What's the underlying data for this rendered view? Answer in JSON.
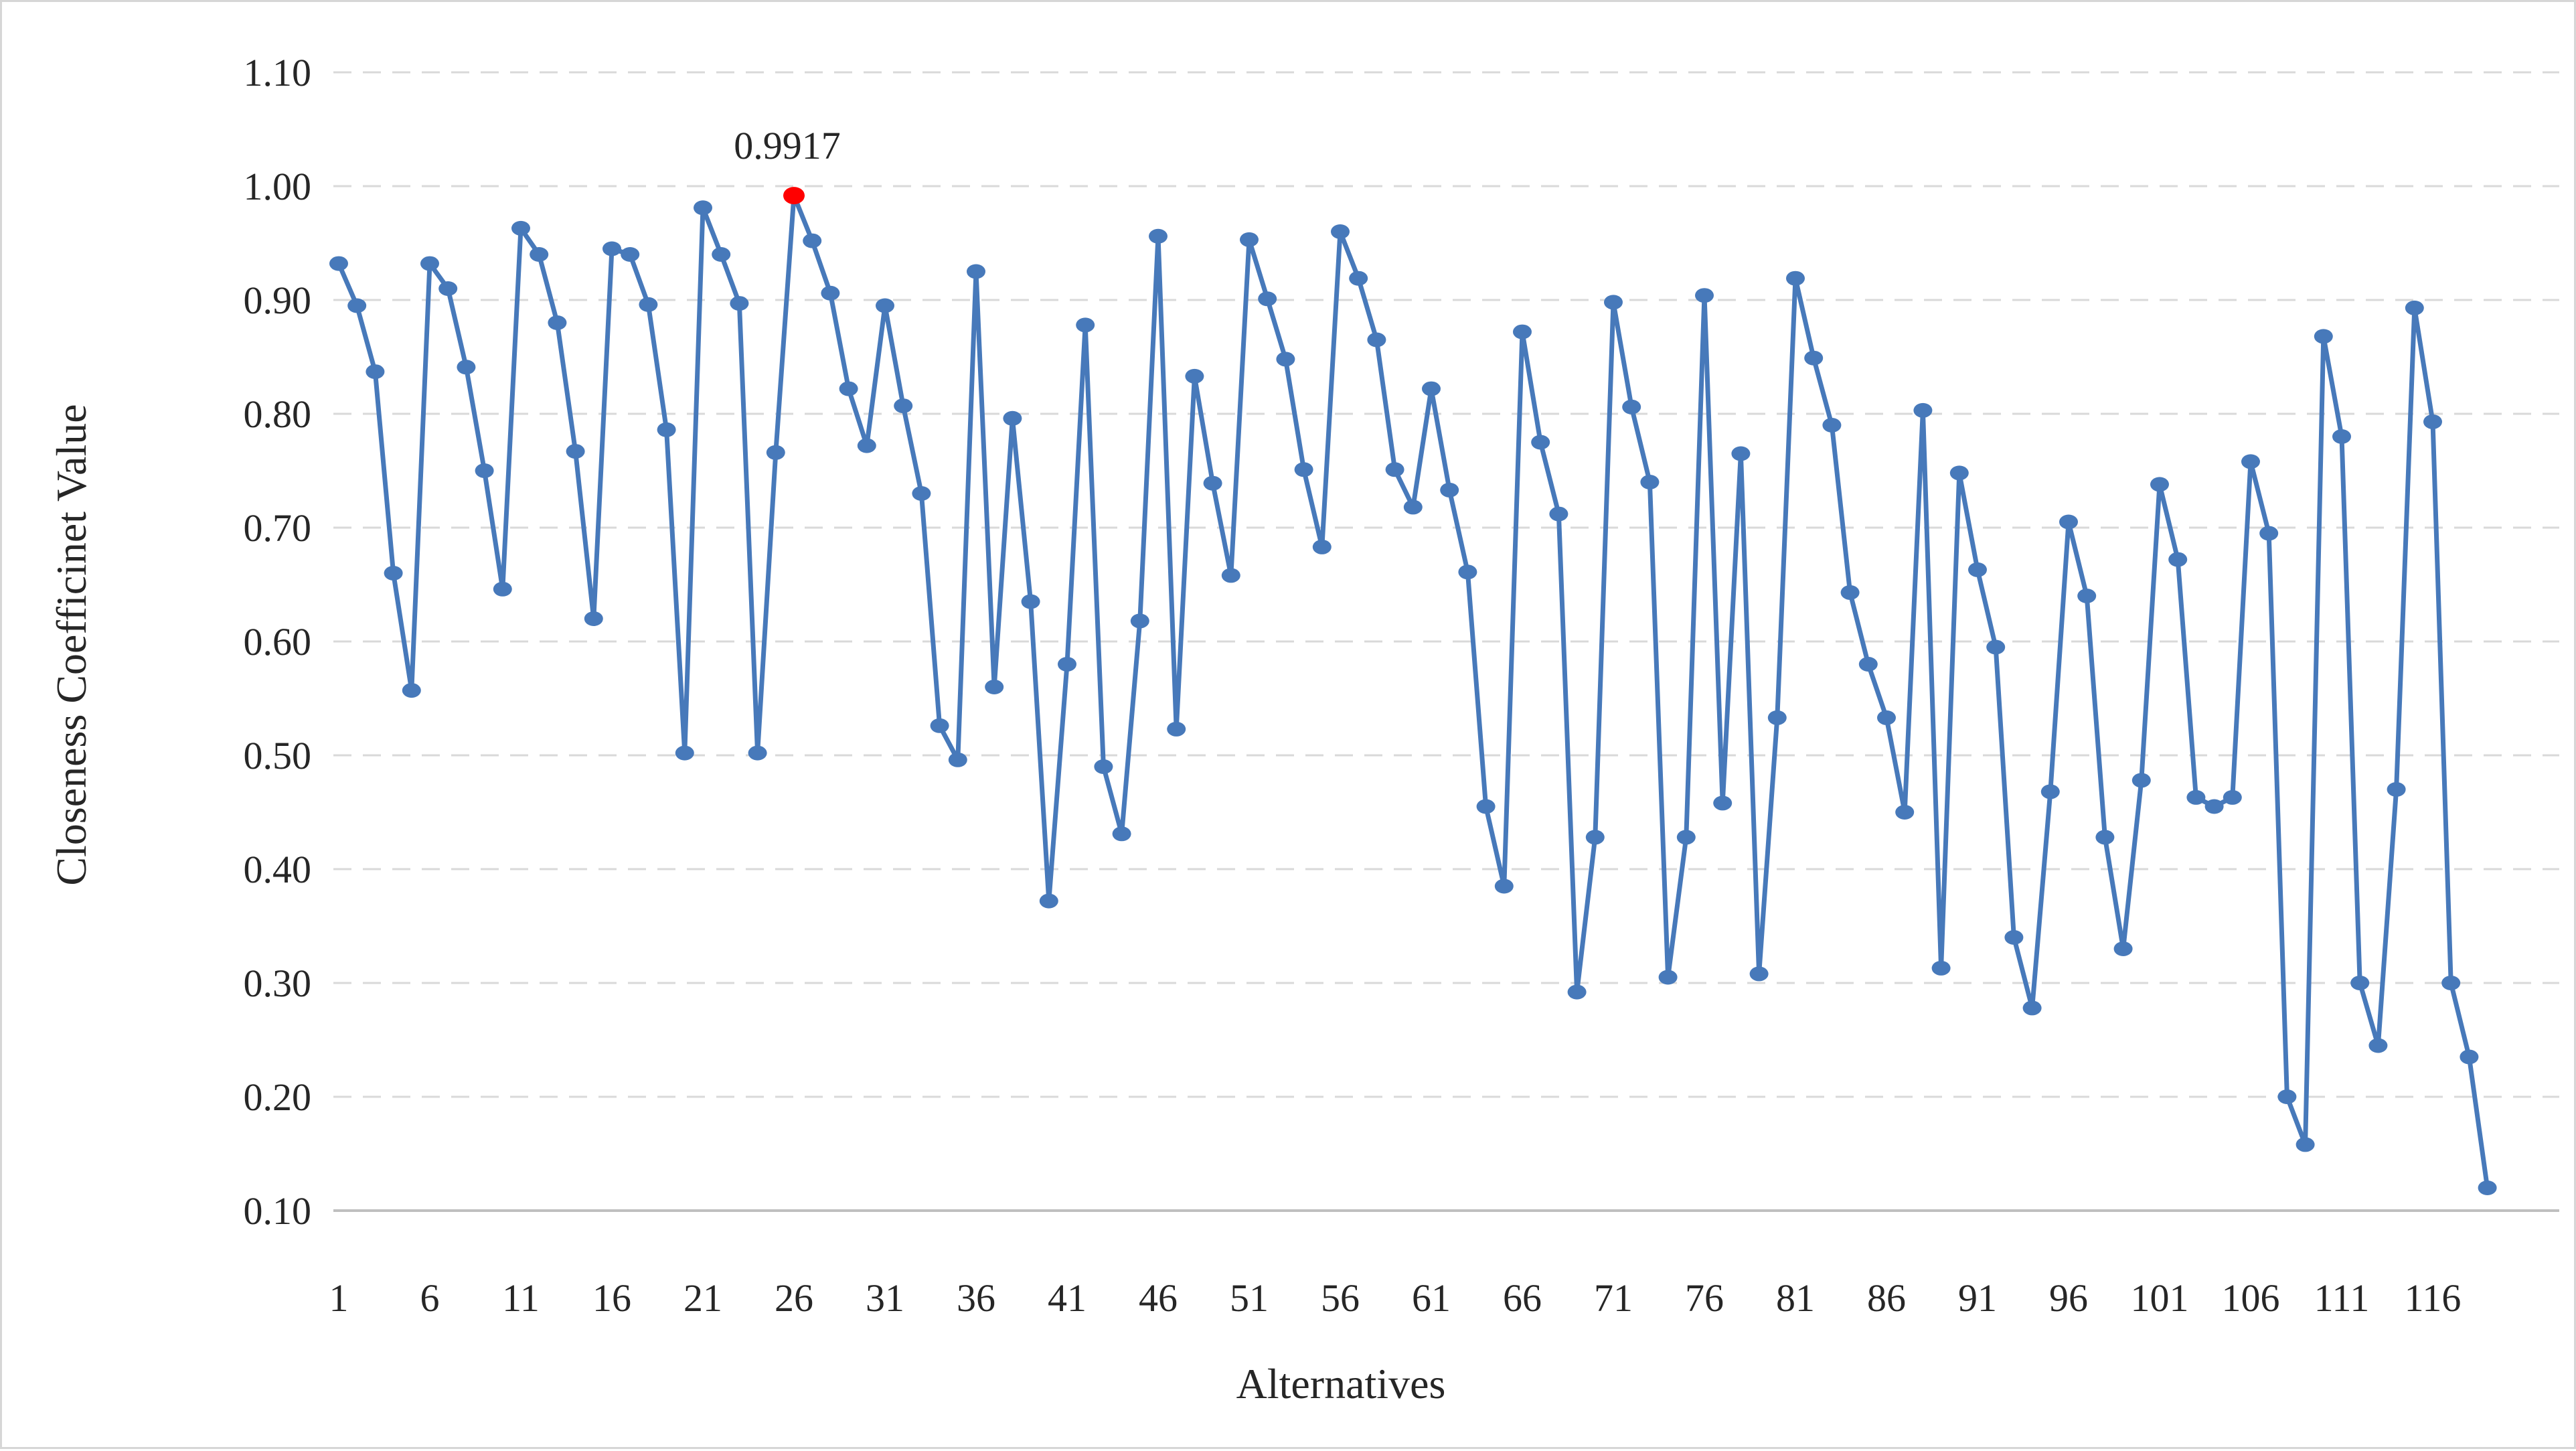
{
  "figure": {
    "y_axis_title": "Closeness Coefficinet Value",
    "x_axis_title": "Alternatives",
    "background_color": "#ffffff",
    "border_color": "#d6d6d6"
  },
  "annotation": {
    "text": "0.9917"
  },
  "chart_data": {
    "type": "line",
    "title": "",
    "xlabel": "Alternatives",
    "ylabel": "Closeness Coefficinet Value",
    "series_name": "Closeness Coefficient Value",
    "x_count": 119,
    "values": [
      0.932,
      0.895,
      0.837,
      0.66,
      0.557,
      0.932,
      0.91,
      0.841,
      0.75,
      0.646,
      0.963,
      0.94,
      0.88,
      0.767,
      0.62,
      0.945,
      0.94,
      0.896,
      0.786,
      0.502,
      0.981,
      0.94,
      0.897,
      0.502,
      0.766,
      0.9917,
      0.952,
      0.906,
      0.822,
      0.772,
      0.895,
      0.807,
      0.73,
      0.526,
      0.496,
      0.925,
      0.56,
      0.796,
      0.635,
      0.372,
      0.58,
      0.878,
      0.49,
      0.431,
      0.618,
      0.956,
      0.523,
      0.833,
      0.739,
      0.658,
      0.953,
      0.901,
      0.848,
      0.751,
      0.683,
      0.96,
      0.919,
      0.865,
      0.751,
      0.718,
      0.822,
      0.733,
      0.661,
      0.455,
      0.385,
      0.872,
      0.775,
      0.712,
      0.292,
      0.428,
      0.898,
      0.806,
      0.74,
      0.305,
      0.428,
      0.904,
      0.458,
      0.765,
      0.308,
      0.533,
      0.919,
      0.849,
      0.79,
      0.643,
      0.58,
      0.533,
      0.45,
      0.803,
      0.313,
      0.748,
      0.663,
      0.595,
      0.34,
      0.278,
      0.468,
      0.705,
      0.64,
      0.428,
      0.33,
      0.478,
      0.738,
      0.672,
      0.463,
      0.455,
      0.463,
      0.758,
      0.695,
      0.2,
      0.158,
      0.868,
      0.78,
      0.3,
      0.245,
      0.47,
      0.893,
      0.793,
      0.3,
      0.235,
      0.12
    ],
    "highlight": {
      "index": 26,
      "value": 0.9917,
      "label": "0.9917",
      "color": "#ff0000"
    },
    "ylim": [
      0.1,
      1.1
    ],
    "y_ticks": [
      1.1,
      1.0,
      0.9,
      0.8,
      0.7,
      0.6,
      0.5,
      0.4,
      0.3,
      0.2,
      0.1
    ],
    "y_tick_labels": [
      "1.10",
      "1.00",
      "0.90",
      "0.80",
      "0.70",
      "0.60",
      "0.50",
      "0.40",
      "0.30",
      "0.20",
      "0.10"
    ],
    "x_ticks": [
      1,
      6,
      11,
      16,
      21,
      26,
      31,
      36,
      41,
      46,
      51,
      56,
      61,
      66,
      71,
      76,
      81,
      86,
      91,
      96,
      101,
      106,
      111,
      116
    ],
    "grid": "horizontal-dashed",
    "gridline_color": "#d9d9d9",
    "axis_line_color": "#bfbfbf",
    "legend_position": "none",
    "line_color": "#4779ba",
    "marker_color": "#4779ba"
  }
}
